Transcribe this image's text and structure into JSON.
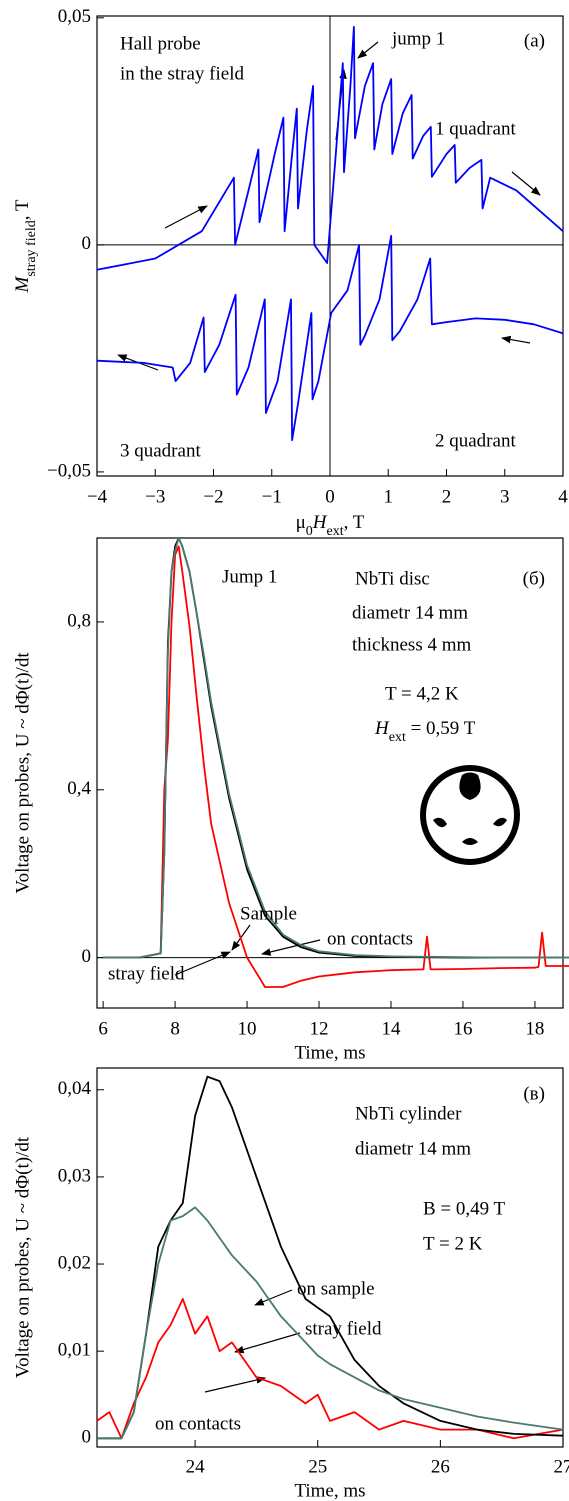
{
  "chart_data": [
    {
      "type": "line",
      "xlabel": [
        "μ",
        "0",
        "H",
        "ext",
        ", T"
      ],
      "ylabel": [
        "M",
        "stray field",
        ", T"
      ],
      "xlim": [
        -4,
        4
      ],
      "ylim": [
        -0.0509,
        0.0504
      ],
      "xticks": [
        {
          "value": -4,
          "label": "−4"
        },
        {
          "value": -3,
          "label": "−3"
        },
        {
          "value": -2,
          "label": "−2"
        },
        {
          "value": -1,
          "label": "−1"
        },
        0,
        1,
        2,
        3,
        4
      ],
      "yticks": [
        {
          "value": -0.05,
          "label": "−0,05"
        },
        0,
        {
          "value": 0.05,
          "label": "0,05"
        }
      ],
      "annotations": [
        "Hall probe",
        "in the stray field",
        "jump 1",
        "(a)",
        "1 quadrant",
        "2 quadrant",
        "3 quadrant"
      ],
      "series": [
        {
          "color": "#0000ff",
          "x": [
            -4,
            -3,
            -2.2,
            -1.65,
            -1.63,
            -1.4,
            -1.23,
            -1.21,
            -0.95,
            -0.8,
            -0.78,
            -0.65,
            -0.57,
            -0.55,
            -0.4,
            -0.29,
            -0.27,
            -0.05,
            0.1,
            0.22,
            0.24,
            0.35,
            0.41,
            0.43,
            0.6,
            0.74,
            0.76,
            0.9,
            1.05,
            1.07,
            1.25,
            1.4,
            1.42,
            1.6,
            1.73,
            1.75,
            2.0,
            2.14,
            2.16,
            2.4,
            2.6,
            2.62,
            2.75,
            3.2,
            4
          ],
          "values": [
            -0.0055,
            -0.003,
            0.003,
            0.0148,
            0.0,
            0.012,
            0.021,
            0.005,
            0.02,
            0.028,
            0.003,
            0.02,
            0.03,
            0.008,
            0.025,
            0.035,
            0.0,
            -0.004,
            0.02,
            0.04,
            0.016,
            0.035,
            0.048,
            0.0235,
            0.035,
            0.04,
            0.021,
            0.031,
            0.0365,
            0.02,
            0.029,
            0.033,
            0.019,
            0.024,
            0.026,
            0.015,
            0.02,
            0.022,
            0.0137,
            0.017,
            0.0187,
            0.008,
            0.0148,
            0.012,
            0.003
          ]
        },
        {
          "color": "#0000ff",
          "x": [
            4,
            3.5,
            3.0,
            2.5,
            2.0,
            1.75,
            1.72,
            1.5,
            1.2,
            1.07,
            1.05,
            0.85,
            0.6,
            0.52,
            0.5,
            0.3,
            0.02,
            -0.2,
            -0.3,
            -0.32,
            -0.55,
            -0.65,
            -0.67,
            -0.9,
            -1.1,
            -1.12,
            -1.4,
            -1.6,
            -1.62,
            -1.9,
            -2.15,
            -2.17,
            -2.4,
            -2.65,
            -2.7,
            -3.2,
            -4
          ],
          "values": [
            -0.0195,
            -0.0175,
            -0.0165,
            -0.0162,
            -0.017,
            -0.0175,
            -0.003,
            -0.012,
            -0.019,
            -0.021,
            0.002,
            -0.012,
            -0.02,
            -0.022,
            0.0,
            -0.01,
            -0.015,
            -0.03,
            -0.034,
            -0.015,
            -0.035,
            -0.043,
            -0.012,
            -0.03,
            -0.037,
            -0.012,
            -0.027,
            -0.033,
            -0.011,
            -0.022,
            -0.028,
            -0.016,
            -0.026,
            -0.03,
            -0.027,
            -0.026,
            -0.0255
          ]
        }
      ]
    },
    {
      "type": "line",
      "xlabel": "Time, ms",
      "ylabel": "Voltage on probes, U ~ dΦ(t)/dt",
      "xlim": [
        5.83,
        18.78
      ],
      "ylim": [
        -0.12,
        1.0
      ],
      "xticks": [
        6,
        8,
        10,
        12,
        14,
        16,
        18
      ],
      "yticks": [
        0,
        {
          "value": 0.4,
          "label": "0,4"
        },
        {
          "value": 0.8,
          "label": "0,8"
        }
      ],
      "annotations": [
        "Jump 1",
        "NbTi disc",
        "diametr 14 mm",
        "thickness 4 mm",
        "(б)",
        "T = 4,2 K",
        [
          "H",
          "ext",
          " = 0,59 T"
        ],
        "Sample",
        "on contacts",
        "stray field"
      ],
      "x": [
        6,
        7,
        7.6,
        7.7,
        7.8,
        7.9,
        8.0,
        8.1,
        8.2,
        8.4,
        8.6,
        8.8,
        9,
        9.5,
        10,
        10.5,
        11,
        11.5,
        12,
        13,
        14,
        14.9,
        15,
        15.1,
        16,
        17,
        18,
        18.1,
        18.2,
        18.3,
        19
      ],
      "series": [
        {
          "color": "#ff0000",
          "values": [
            0,
            0,
            0.01,
            0.4,
            0.52,
            0.8,
            0.96,
            0.98,
            0.92,
            0.79,
            0.62,
            0.46,
            0.32,
            0.13,
            0.0,
            -0.07,
            -0.07,
            -0.055,
            -0.045,
            -0.035,
            -0.03,
            -0.028,
            0.05,
            -0.028,
            -0.027,
            -0.025,
            -0.024,
            -0.022,
            0.06,
            -0.02,
            -0.02
          ]
        },
        {
          "color": "#000000",
          "values": [
            0,
            0,
            0.01,
            0.25,
            0.75,
            0.92,
            0.98,
            1.0,
            0.98,
            0.92,
            0.82,
            0.71,
            0.6,
            0.38,
            0.21,
            0.1,
            0.05,
            0.025,
            0.012,
            0.004,
            0.002,
            0.001,
            0.001,
            0.001,
            0,
            0,
            0,
            0,
            0,
            0,
            0
          ]
        },
        {
          "color": "#4a7a70",
          "values": [
            0,
            0,
            0.01,
            0.25,
            0.73,
            0.92,
            0.97,
            1.0,
            0.98,
            0.92,
            0.82,
            0.72,
            0.61,
            0.39,
            0.22,
            0.11,
            0.055,
            0.03,
            0.015,
            0.006,
            0.003,
            0.002,
            0.002,
            0.002,
            0.001,
            0,
            0,
            0,
            0,
            0,
            0
          ]
        }
      ]
    },
    {
      "type": "line",
      "xlabel": "Time, ms",
      "ylabel": "Voltage on probes, U ~ dΦ(t)/dt",
      "xlim": [
        23.2,
        27.0
      ],
      "ylim": [
        -0.001,
        0.0425
      ],
      "xticks": [
        24,
        25,
        26,
        27
      ],
      "yticks": [
        0,
        {
          "value": 0.01,
          "label": "0,01"
        },
        {
          "value": 0.02,
          "label": "0,02"
        },
        {
          "value": 0.03,
          "label": "0,03"
        },
        {
          "value": 0.04,
          "label": "0,04"
        }
      ],
      "annotations": [
        "(в)",
        "NbTi cylinder",
        "diametr 14 mm",
        "B = 0,49 T",
        "T = 2 K",
        "on sample",
        "stray field",
        "on contacts"
      ],
      "x": [
        23.2,
        23.3,
        23.4,
        23.5,
        23.6,
        23.7,
        23.8,
        23.9,
        24.0,
        24.1,
        24.2,
        24.3,
        24.5,
        24.7,
        24.9,
        25.0,
        25.1,
        25.3,
        25.5,
        25.7,
        26,
        26.3,
        26.6,
        27
      ],
      "series": [
        {
          "color": "#ff0000",
          "values": [
            0.002,
            0.003,
            0,
            0.004,
            0.007,
            0.011,
            0.013,
            0.016,
            0.012,
            0.014,
            0.01,
            0.011,
            0.007,
            0.006,
            0.004,
            0.005,
            0.002,
            0.003,
            0.001,
            0.002,
            0.001,
            0.001,
            0,
            0.001
          ]
        },
        {
          "color": "#000000",
          "values": [
            0,
            0,
            0,
            0.003,
            0.012,
            0.022,
            0.025,
            0.027,
            0.037,
            0.0415,
            0.041,
            0.038,
            0.03,
            0.022,
            0.016,
            0.015,
            0.014,
            0.009,
            0.006,
            0.004,
            0.002,
            0.001,
            0.0005,
            0.0003
          ]
        },
        {
          "color": "#4a7a70",
          "values": [
            0,
            0,
            0,
            0.003,
            0.012,
            0.02,
            0.025,
            0.0255,
            0.0265,
            0.025,
            0.023,
            0.021,
            0.018,
            0.014,
            0.011,
            0.0095,
            0.0085,
            0.007,
            0.0055,
            0.0045,
            0.0035,
            0.0025,
            0.0018,
            0.001
          ]
        }
      ]
    }
  ]
}
